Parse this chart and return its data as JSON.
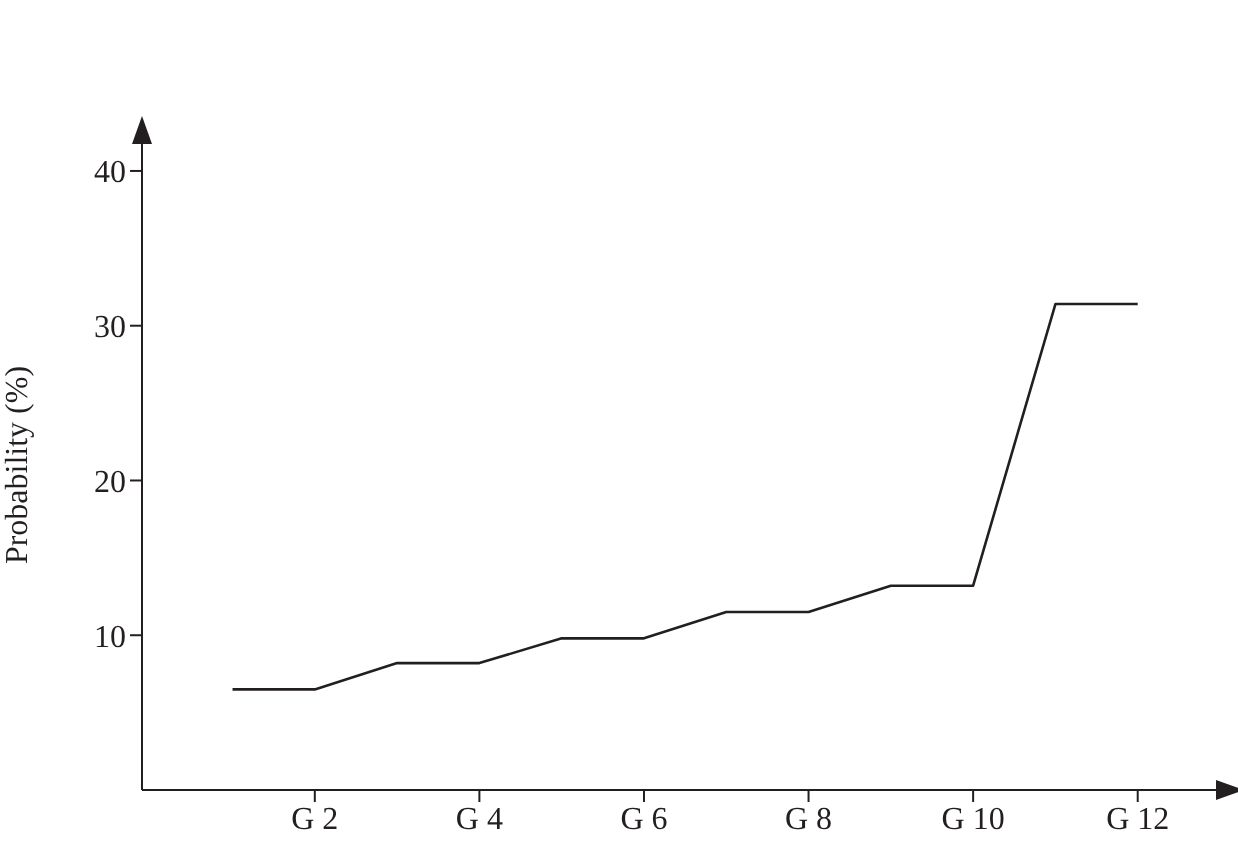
{
  "chart_data": {
    "type": "line",
    "ylabel": "Probability (%)",
    "categories": [
      null,
      "G 2",
      null,
      "G 4",
      null,
      "G 6",
      null,
      "G 8",
      null,
      "G 10",
      null,
      "G 12"
    ],
    "series": [
      {
        "color": "#231f20",
        "values": [
          6.5,
          6.5,
          8.2,
          8.2,
          9.8,
          9.8,
          11.5,
          11.5,
          13.2,
          13.2,
          31.4,
          31.4
        ]
      }
    ],
    "ylim": [
      0,
      42
    ],
    "yticks": [
      10,
      20,
      30,
      40
    ]
  }
}
